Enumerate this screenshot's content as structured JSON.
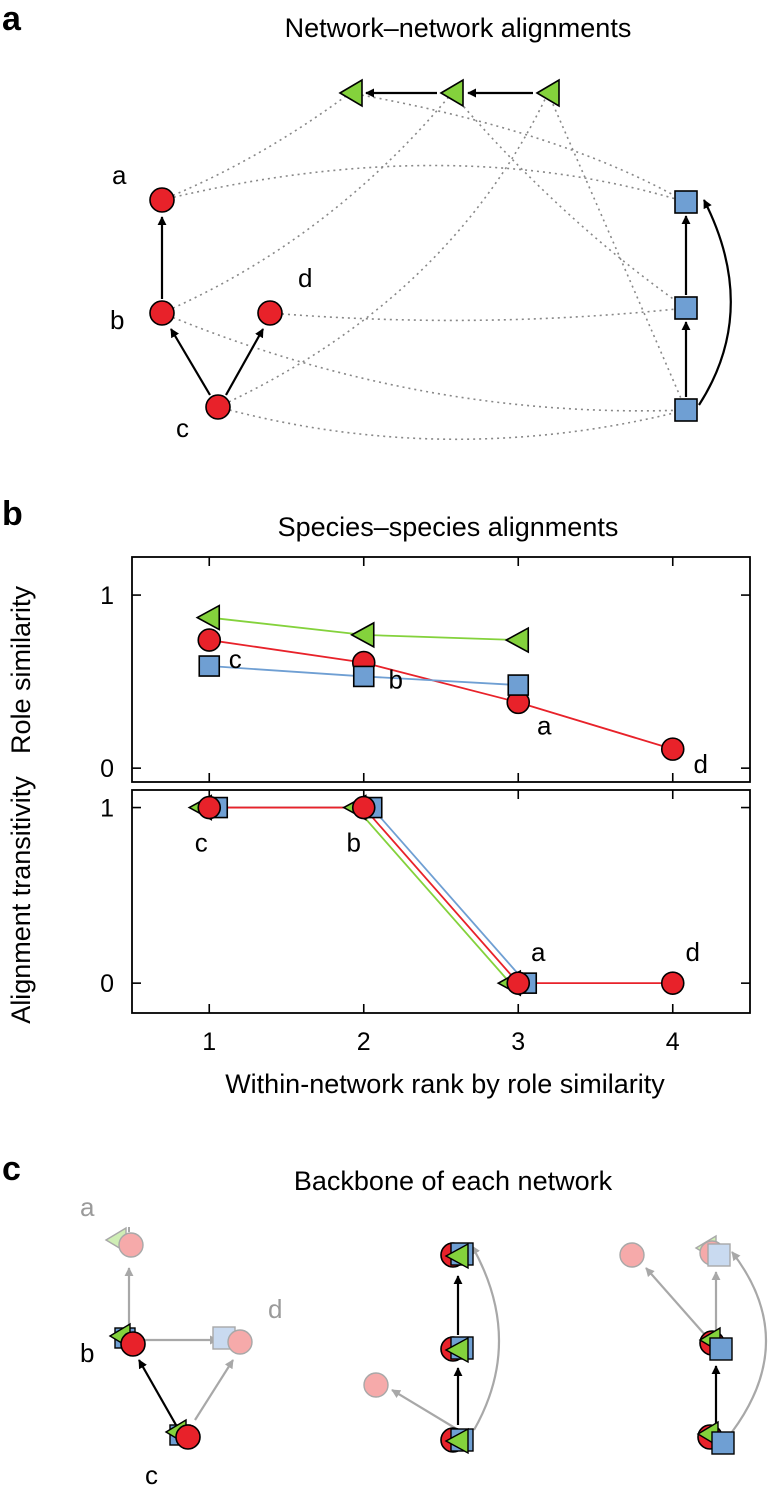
{
  "panel_labels": {
    "a": "a",
    "b": "b",
    "c": "c"
  },
  "colors": {
    "red": "#e8222a",
    "green": "#84d23c",
    "blue": "#6f9fd3",
    "dotted": "#888888",
    "faded": "#a8a8a8"
  },
  "panel_a": {
    "title": "Network–network alignments",
    "node_labels": {
      "a": "a",
      "b": "b",
      "c": "c",
      "d": "d"
    }
  },
  "panel_c": {
    "title": "Backbone of each network",
    "labels": {
      "a": "a",
      "b": "b",
      "c": "c",
      "d": "d"
    }
  },
  "chart_data": [
    {
      "type": "line",
      "title": "Species–species alignments",
      "ylabel": "Role similarity",
      "xlabel": "",
      "xlim": [
        0.5,
        4.5
      ],
      "ylim": [
        -0.08,
        1.22
      ],
      "yticks": [
        0,
        1
      ],
      "series": [
        {
          "name": "green",
          "marker": "triangle-left",
          "x": [
            1,
            2,
            3
          ],
          "values": [
            0.87,
            0.77,
            0.74
          ]
        },
        {
          "name": "red",
          "marker": "circle",
          "x": [
            1,
            2,
            3,
            4
          ],
          "values": [
            0.74,
            0.61,
            0.38,
            0.11
          ]
        },
        {
          "name": "blue",
          "marker": "square",
          "x": [
            1,
            2,
            3
          ],
          "values": [
            0.59,
            0.53,
            0.48
          ]
        }
      ],
      "annotations": [
        {
          "text": "c",
          "x": 1,
          "y": 0.74
        },
        {
          "text": "b",
          "x": 2,
          "y": 0.61
        },
        {
          "text": "a",
          "x": 3,
          "y": 0.38
        },
        {
          "text": "d",
          "x": 4,
          "y": 0.11
        }
      ]
    },
    {
      "type": "line",
      "title": "",
      "ylabel": "Alignment transitivity",
      "xlabel": "Within-network rank by role similarity",
      "xlim": [
        0.5,
        4.5
      ],
      "ylim": [
        -0.17,
        1.1
      ],
      "xticks": [
        1,
        2,
        3,
        4
      ],
      "yticks": [
        0,
        1
      ],
      "series": [
        {
          "name": "green",
          "marker": "triangle-left",
          "x": [
            1,
            2,
            3
          ],
          "values": [
            1,
            1,
            0
          ]
        },
        {
          "name": "blue",
          "marker": "square",
          "x": [
            1,
            2,
            3
          ],
          "values": [
            1,
            1,
            0
          ]
        },
        {
          "name": "red",
          "marker": "circle",
          "x": [
            1,
            2,
            3,
            4
          ],
          "values": [
            1,
            1,
            0,
            0
          ]
        }
      ],
      "annotations": [
        {
          "text": "c",
          "x": 1,
          "y": 1
        },
        {
          "text": "b",
          "x": 2,
          "y": 1
        },
        {
          "text": "a",
          "x": 3,
          "y": 0
        },
        {
          "text": "d",
          "x": 4,
          "y": 0
        }
      ]
    }
  ]
}
